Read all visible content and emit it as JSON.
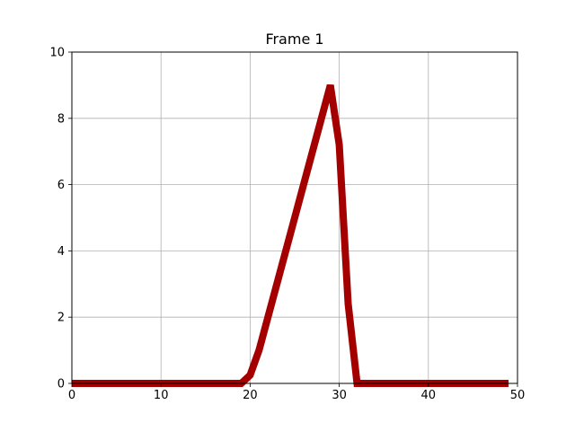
{
  "chart_data": {
    "type": "line",
    "title": "Frame 1",
    "xlabel": "",
    "ylabel": "",
    "xlim": [
      0,
      50
    ],
    "ylim": [
      0,
      10
    ],
    "xticks": [
      0,
      10,
      20,
      30,
      40,
      50
    ],
    "yticks": [
      0,
      2,
      4,
      6,
      8,
      10
    ],
    "grid": true,
    "series": [
      {
        "color": "#a50000",
        "x": [
          0,
          19,
          20,
          21,
          22,
          23,
          24,
          25,
          26,
          27,
          28,
          29,
          30,
          31,
          32,
          33,
          49
        ],
        "y": [
          0,
          0,
          0.25,
          1.0,
          2.0,
          3.0,
          4.0,
          5.0,
          6.0,
          7.0,
          8.0,
          9.0,
          7.2,
          2.4,
          0,
          0,
          0
        ]
      }
    ]
  }
}
